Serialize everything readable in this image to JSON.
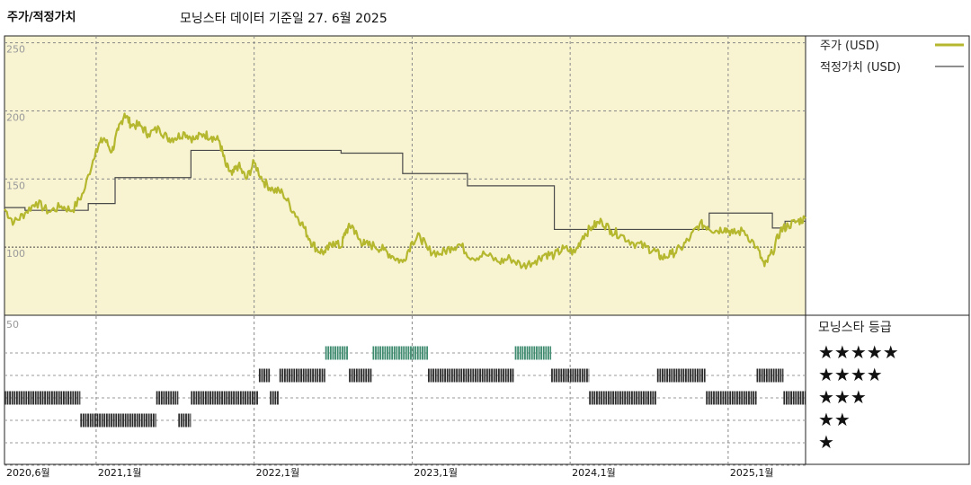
{
  "header": {
    "title": "주가/적정가치",
    "subtitle": "모닝스타 데이터 기준일 27. 6월 2025"
  },
  "colors": {
    "price_line": "#b5b82e",
    "fair_line": "#4a4a4a",
    "upper_bg": "#f8f4d2",
    "five_star_bar": "#3d8a6e",
    "rating_bar": "#2b2b2b"
  },
  "legend": {
    "price": "주가 (USD)",
    "fair": "적정가치 (USD)"
  },
  "rating_panel": {
    "title": "모닝스타 등급",
    "levels": [
      "★★★★★",
      "★★★★",
      "★★★",
      "★★",
      "★"
    ]
  },
  "chart_data": [
    {
      "type": "line",
      "ylim": [
        50,
        255
      ],
      "y_ticks": [
        100,
        150,
        200,
        250
      ],
      "x_ticks": [
        "2020,6월",
        "2021,1월",
        "2022,1월",
        "2023,1월",
        "2024,1월",
        "2025,1월"
      ],
      "x_tick_dates": [
        2020.42,
        2021.0,
        2022.0,
        2023.0,
        2024.0,
        2025.0
      ],
      "xlim": [
        2020.42,
        2025.49
      ],
      "grid": true,
      "legend_position": "right",
      "series": [
        {
          "name": "주가 (USD)",
          "points": [
            [
              2020.42,
              128
            ],
            [
              2020.48,
              118
            ],
            [
              2020.55,
              125
            ],
            [
              2020.62,
              133
            ],
            [
              2020.7,
              126
            ],
            [
              2020.78,
              130
            ],
            [
              2020.85,
              127
            ],
            [
              2020.92,
              140
            ],
            [
              2021.0,
              172
            ],
            [
              2021.05,
              180
            ],
            [
              2021.1,
              170
            ],
            [
              2021.14,
              186
            ],
            [
              2021.18,
              198
            ],
            [
              2021.22,
              190
            ],
            [
              2021.28,
              189
            ],
            [
              2021.33,
              183
            ],
            [
              2021.4,
              187
            ],
            [
              2021.45,
              180
            ],
            [
              2021.5,
              180
            ],
            [
              2021.56,
              184
            ],
            [
              2021.62,
              179
            ],
            [
              2021.68,
              183
            ],
            [
              2021.73,
              181
            ],
            [
              2021.78,
              178
            ],
            [
              2021.82,
              160
            ],
            [
              2021.86,
              153
            ],
            [
              2021.9,
              160
            ],
            [
              2021.95,
              150
            ],
            [
              2022.0,
              162
            ],
            [
              2022.06,
              148
            ],
            [
              2022.12,
              142
            ],
            [
              2022.18,
              140
            ],
            [
              2022.25,
              126
            ],
            [
              2022.3,
              118
            ],
            [
              2022.35,
              106
            ],
            [
              2022.4,
              98
            ],
            [
              2022.45,
              96
            ],
            [
              2022.5,
              104
            ],
            [
              2022.55,
              100
            ],
            [
              2022.58,
              112
            ],
            [
              2022.62,
              116
            ],
            [
              2022.66,
              106
            ],
            [
              2022.7,
              102
            ],
            [
              2022.76,
              101
            ],
            [
              2022.82,
              98
            ],
            [
              2022.88,
              93
            ],
            [
              2022.94,
              89
            ],
            [
              2023.0,
              104
            ],
            [
              2023.05,
              108
            ],
            [
              2023.1,
              98
            ],
            [
              2023.18,
              95
            ],
            [
              2023.25,
              100
            ],
            [
              2023.3,
              102
            ],
            [
              2023.38,
              92
            ],
            [
              2023.46,
              95
            ],
            [
              2023.55,
              89
            ],
            [
              2023.62,
              92
            ],
            [
              2023.7,
              86
            ],
            [
              2023.78,
              90
            ],
            [
              2023.84,
              95
            ],
            [
              2023.9,
              94
            ],
            [
              2023.96,
              99
            ],
            [
              2024.03,
              96
            ],
            [
              2024.08,
              108
            ],
            [
              2024.14,
              115
            ],
            [
              2024.2,
              119
            ],
            [
              2024.26,
              112
            ],
            [
              2024.32,
              109
            ],
            [
              2024.4,
              103
            ],
            [
              2024.48,
              100
            ],
            [
              2024.54,
              97
            ],
            [
              2024.58,
              92
            ],
            [
              2024.64,
              95
            ],
            [
              2024.7,
              99
            ],
            [
              2024.76,
              107
            ],
            [
              2024.82,
              117
            ],
            [
              2024.87,
              115
            ],
            [
              2024.92,
              112
            ],
            [
              2024.98,
              114
            ],
            [
              2025.03,
              110
            ],
            [
              2025.1,
              112
            ],
            [
              2025.18,
              100
            ],
            [
              2025.23,
              86
            ],
            [
              2025.28,
              96
            ],
            [
              2025.33,
              112
            ],
            [
              2025.38,
              116
            ],
            [
              2025.44,
              119
            ],
            [
              2025.49,
              121
            ]
          ]
        },
        {
          "name": "적정가치 (USD)",
          "points": [
            [
              2020.42,
              129
            ],
            [
              2020.55,
              129
            ],
            [
              2020.55,
              127
            ],
            [
              2020.95,
              127
            ],
            [
              2020.95,
              132
            ],
            [
              2021.12,
              132
            ],
            [
              2021.12,
              151
            ],
            [
              2021.6,
              151
            ],
            [
              2021.6,
              171
            ],
            [
              2022.55,
              171
            ],
            [
              2022.55,
              169
            ],
            [
              2022.94,
              169
            ],
            [
              2022.94,
              154
            ],
            [
              2023.35,
              154
            ],
            [
              2023.35,
              145
            ],
            [
              2023.9,
              145
            ],
            [
              2023.9,
              113
            ],
            [
              2024.88,
              113
            ],
            [
              2024.88,
              125
            ],
            [
              2025.28,
              125
            ],
            [
              2025.28,
              114
            ],
            [
              2025.36,
              114
            ],
            [
              2025.36,
              119
            ],
            [
              2025.49,
              119
            ]
          ]
        }
      ]
    },
    {
      "type": "bar",
      "y_axis_label": "50",
      "rating_levels": [
        5,
        4,
        3,
        2,
        1
      ],
      "segments": [
        {
          "stars": 3,
          "from": 2020.42,
          "to": 2020.9
        },
        {
          "stars": 2,
          "from": 2020.9,
          "to": 2021.38
        },
        {
          "stars": 3,
          "from": 2021.38,
          "to": 2021.52
        },
        {
          "stars": 2,
          "from": 2021.52,
          "to": 2021.6
        },
        {
          "stars": 3,
          "from": 2021.6,
          "to": 2022.03
        },
        {
          "stars": 4,
          "from": 2022.03,
          "to": 2022.1
        },
        {
          "stars": 3,
          "from": 2022.1,
          "to": 2022.16
        },
        {
          "stars": 4,
          "from": 2022.16,
          "to": 2022.45
        },
        {
          "stars": 5,
          "from": 2022.45,
          "to": 2022.6
        },
        {
          "stars": 4,
          "from": 2022.6,
          "to": 2022.75
        },
        {
          "stars": 5,
          "from": 2022.75,
          "to": 2023.1
        },
        {
          "stars": 4,
          "from": 2023.1,
          "to": 2023.65
        },
        {
          "stars": 5,
          "from": 2023.65,
          "to": 2023.88
        },
        {
          "stars": 4,
          "from": 2023.88,
          "to": 2024.12
        },
        {
          "stars": 3,
          "from": 2024.12,
          "to": 2024.55
        },
        {
          "stars": 4,
          "from": 2024.55,
          "to": 2024.86
        },
        {
          "stars": 3,
          "from": 2024.86,
          "to": 2025.18
        },
        {
          "stars": 4,
          "from": 2025.18,
          "to": 2025.35
        },
        {
          "stars": 3,
          "from": 2025.35,
          "to": 2025.49
        }
      ]
    }
  ]
}
